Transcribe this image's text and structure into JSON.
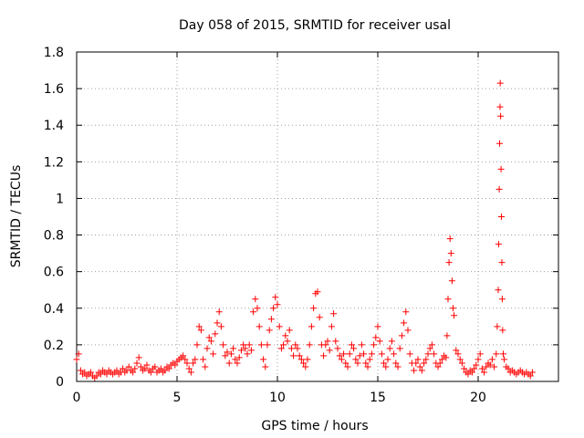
{
  "chart_data": {
    "type": "scatter",
    "title": "Day 058 of 2015, SRMTID for receiver usal",
    "xlabel": "GPS time / hours",
    "ylabel": "SRMTID / TECUs",
    "xlim": [
      0,
      24
    ],
    "ylim": [
      0,
      1.8
    ],
    "xticks": [
      0,
      5,
      10,
      15,
      20
    ],
    "yticks": [
      0,
      0.2,
      0.4,
      0.6,
      0.8,
      1,
      1.2,
      1.4,
      1.6,
      1.8
    ],
    "xtick_labels": [
      "0",
      "5",
      "10",
      "15",
      "20"
    ],
    "ytick_labels": [
      "0",
      "0.2",
      "0.4",
      "0.6",
      "0.8",
      "1",
      "1.2",
      "1.4",
      "1.6",
      "1.8"
    ],
    "grid": true,
    "marker": "plus",
    "color": "#ff0000",
    "series": [
      {
        "name": "SRMTID",
        "points": [
          [
            0.0,
            0.12
          ],
          [
            0.1,
            0.15
          ],
          [
            0.2,
            0.06
          ],
          [
            0.3,
            0.04
          ],
          [
            0.4,
            0.05
          ],
          [
            0.5,
            0.03
          ],
          [
            0.6,
            0.04
          ],
          [
            0.7,
            0.05
          ],
          [
            0.8,
            0.03
          ],
          [
            0.9,
            0.02
          ],
          [
            1.0,
            0.03
          ],
          [
            1.1,
            0.05
          ],
          [
            1.2,
            0.04
          ],
          [
            1.3,
            0.06
          ],
          [
            1.4,
            0.05
          ],
          [
            1.5,
            0.04
          ],
          [
            1.6,
            0.06
          ],
          [
            1.7,
            0.05
          ],
          [
            1.8,
            0.04
          ],
          [
            1.9,
            0.05
          ],
          [
            2.0,
            0.06
          ],
          [
            2.1,
            0.04
          ],
          [
            2.2,
            0.05
          ],
          [
            2.3,
            0.07
          ],
          [
            2.4,
            0.05
          ],
          [
            2.5,
            0.06
          ],
          [
            2.6,
            0.08
          ],
          [
            2.7,
            0.06
          ],
          [
            2.8,
            0.05
          ],
          [
            2.9,
            0.07
          ],
          [
            3.0,
            0.1
          ],
          [
            3.1,
            0.13
          ],
          [
            3.2,
            0.08
          ],
          [
            3.3,
            0.06
          ],
          [
            3.4,
            0.07
          ],
          [
            3.5,
            0.09
          ],
          [
            3.6,
            0.06
          ],
          [
            3.7,
            0.05
          ],
          [
            3.8,
            0.07
          ],
          [
            3.9,
            0.08
          ],
          [
            4.0,
            0.05
          ],
          [
            4.1,
            0.06
          ],
          [
            4.2,
            0.07
          ],
          [
            4.3,
            0.05
          ],
          [
            4.4,
            0.06
          ],
          [
            4.5,
            0.08
          ],
          [
            4.6,
            0.07
          ],
          [
            4.7,
            0.09
          ],
          [
            4.8,
            0.1
          ],
          [
            4.9,
            0.09
          ],
          [
            5.0,
            0.11
          ],
          [
            5.1,
            0.12
          ],
          [
            5.2,
            0.13
          ],
          [
            5.3,
            0.14
          ],
          [
            5.4,
            0.12
          ],
          [
            5.5,
            0.1
          ],
          [
            5.6,
            0.07
          ],
          [
            5.7,
            0.05
          ],
          [
            5.8,
            0.1
          ],
          [
            5.9,
            0.12
          ],
          [
            6.0,
            0.2
          ],
          [
            6.1,
            0.3
          ],
          [
            6.2,
            0.28
          ],
          [
            6.3,
            0.12
          ],
          [
            6.4,
            0.08
          ],
          [
            6.5,
            0.18
          ],
          [
            6.6,
            0.24
          ],
          [
            6.7,
            0.22
          ],
          [
            6.8,
            0.15
          ],
          [
            6.9,
            0.26
          ],
          [
            7.0,
            0.32
          ],
          [
            7.1,
            0.38
          ],
          [
            7.2,
            0.3
          ],
          [
            7.3,
            0.2
          ],
          [
            7.4,
            0.14
          ],
          [
            7.5,
            0.16
          ],
          [
            7.6,
            0.1
          ],
          [
            7.7,
            0.15
          ],
          [
            7.8,
            0.18
          ],
          [
            7.9,
            0.12
          ],
          [
            8.0,
            0.1
          ],
          [
            8.1,
            0.13
          ],
          [
            8.2,
            0.17
          ],
          [
            8.3,
            0.2
          ],
          [
            8.4,
            0.18
          ],
          [
            8.5,
            0.15
          ],
          [
            8.6,
            0.2
          ],
          [
            8.7,
            0.17
          ],
          [
            8.8,
            0.38
          ],
          [
            8.9,
            0.45
          ],
          [
            9.0,
            0.4
          ],
          [
            9.1,
            0.3
          ],
          [
            9.2,
            0.2
          ],
          [
            9.3,
            0.12
          ],
          [
            9.4,
            0.08
          ],
          [
            9.5,
            0.2
          ],
          [
            9.6,
            0.28
          ],
          [
            9.7,
            0.34
          ],
          [
            9.8,
            0.4
          ],
          [
            9.9,
            0.46
          ],
          [
            10.0,
            0.42
          ],
          [
            10.1,
            0.3
          ],
          [
            10.2,
            0.18
          ],
          [
            10.3,
            0.2
          ],
          [
            10.4,
            0.25
          ],
          [
            10.5,
            0.22
          ],
          [
            10.6,
            0.28
          ],
          [
            10.7,
            0.18
          ],
          [
            10.8,
            0.14
          ],
          [
            10.9,
            0.2
          ],
          [
            11.0,
            0.18
          ],
          [
            11.1,
            0.14
          ],
          [
            11.2,
            0.12
          ],
          [
            11.3,
            0.1
          ],
          [
            11.4,
            0.08
          ],
          [
            11.5,
            0.12
          ],
          [
            11.6,
            0.2
          ],
          [
            11.7,
            0.3
          ],
          [
            11.8,
            0.4
          ],
          [
            11.9,
            0.48
          ],
          [
            12.0,
            0.49
          ],
          [
            12.1,
            0.35
          ],
          [
            12.2,
            0.2
          ],
          [
            12.3,
            0.14
          ],
          [
            12.4,
            0.2
          ],
          [
            12.5,
            0.22
          ],
          [
            12.6,
            0.17
          ],
          [
            12.7,
            0.3
          ],
          [
            12.8,
            0.37
          ],
          [
            12.9,
            0.22
          ],
          [
            13.0,
            0.18
          ],
          [
            13.1,
            0.14
          ],
          [
            13.2,
            0.12
          ],
          [
            13.3,
            0.15
          ],
          [
            13.4,
            0.1
          ],
          [
            13.5,
            0.08
          ],
          [
            13.6,
            0.15
          ],
          [
            13.7,
            0.2
          ],
          [
            13.8,
            0.18
          ],
          [
            13.9,
            0.12
          ],
          [
            14.0,
            0.1
          ],
          [
            14.1,
            0.14
          ],
          [
            14.2,
            0.2
          ],
          [
            14.3,
            0.15
          ],
          [
            14.4,
            0.1
          ],
          [
            14.5,
            0.08
          ],
          [
            14.6,
            0.12
          ],
          [
            14.7,
            0.15
          ],
          [
            14.8,
            0.2
          ],
          [
            14.9,
            0.24
          ],
          [
            15.0,
            0.3
          ],
          [
            15.1,
            0.22
          ],
          [
            15.2,
            0.15
          ],
          [
            15.3,
            0.1
          ],
          [
            15.4,
            0.08
          ],
          [
            15.5,
            0.12
          ],
          [
            15.6,
            0.18
          ],
          [
            15.7,
            0.22
          ],
          [
            15.8,
            0.15
          ],
          [
            15.9,
            0.1
          ],
          [
            16.0,
            0.08
          ],
          [
            16.1,
            0.18
          ],
          [
            16.2,
            0.25
          ],
          [
            16.3,
            0.32
          ],
          [
            16.4,
            0.38
          ],
          [
            16.5,
            0.28
          ],
          [
            16.6,
            0.15
          ],
          [
            16.7,
            0.1
          ],
          [
            16.8,
            0.06
          ],
          [
            16.9,
            0.1
          ],
          [
            17.0,
            0.12
          ],
          [
            17.1,
            0.08
          ],
          [
            17.2,
            0.06
          ],
          [
            17.3,
            0.1
          ],
          [
            17.4,
            0.12
          ],
          [
            17.5,
            0.15
          ],
          [
            17.6,
            0.18
          ],
          [
            17.7,
            0.2
          ],
          [
            17.8,
            0.15
          ],
          [
            17.9,
            0.1
          ],
          [
            18.0,
            0.08
          ],
          [
            18.1,
            0.1
          ],
          [
            18.2,
            0.12
          ],
          [
            18.3,
            0.14
          ],
          [
            18.4,
            0.13
          ],
          [
            18.45,
            0.25
          ],
          [
            18.5,
            0.45
          ],
          [
            18.55,
            0.65
          ],
          [
            18.6,
            0.78
          ],
          [
            18.65,
            0.7
          ],
          [
            18.7,
            0.55
          ],
          [
            18.75,
            0.4
          ],
          [
            18.8,
            0.36
          ],
          [
            18.9,
            0.17
          ],
          [
            19.0,
            0.15
          ],
          [
            19.1,
            0.12
          ],
          [
            19.2,
            0.1
          ],
          [
            19.3,
            0.07
          ],
          [
            19.4,
            0.05
          ],
          [
            19.5,
            0.04
          ],
          [
            19.6,
            0.06
          ],
          [
            19.7,
            0.05
          ],
          [
            19.8,
            0.07
          ],
          [
            19.9,
            0.09
          ],
          [
            20.0,
            0.12
          ],
          [
            20.1,
            0.15
          ],
          [
            20.2,
            0.07
          ],
          [
            20.3,
            0.05
          ],
          [
            20.4,
            0.08
          ],
          [
            20.5,
            0.1
          ],
          [
            20.6,
            0.09
          ],
          [
            20.7,
            0.12
          ],
          [
            20.8,
            0.08
          ],
          [
            20.9,
            0.15
          ],
          [
            20.95,
            0.3
          ],
          [
            21.0,
            0.5
          ],
          [
            21.02,
            0.75
          ],
          [
            21.05,
            1.05
          ],
          [
            21.07,
            1.3
          ],
          [
            21.09,
            1.5
          ],
          [
            21.1,
            1.63
          ],
          [
            21.12,
            1.45
          ],
          [
            21.14,
            1.16
          ],
          [
            21.16,
            0.9
          ],
          [
            21.18,
            0.65
          ],
          [
            21.2,
            0.45
          ],
          [
            21.22,
            0.28
          ],
          [
            21.25,
            0.15
          ],
          [
            21.3,
            0.12
          ],
          [
            21.4,
            0.08
          ],
          [
            21.5,
            0.07
          ],
          [
            21.6,
            0.05
          ],
          [
            21.7,
            0.06
          ],
          [
            21.8,
            0.05
          ],
          [
            21.9,
            0.04
          ],
          [
            22.0,
            0.05
          ],
          [
            22.1,
            0.06
          ],
          [
            22.2,
            0.05
          ],
          [
            22.3,
            0.04
          ],
          [
            22.4,
            0.05
          ],
          [
            22.5,
            0.04
          ],
          [
            22.6,
            0.03
          ],
          [
            22.7,
            0.05
          ]
        ]
      }
    ]
  }
}
